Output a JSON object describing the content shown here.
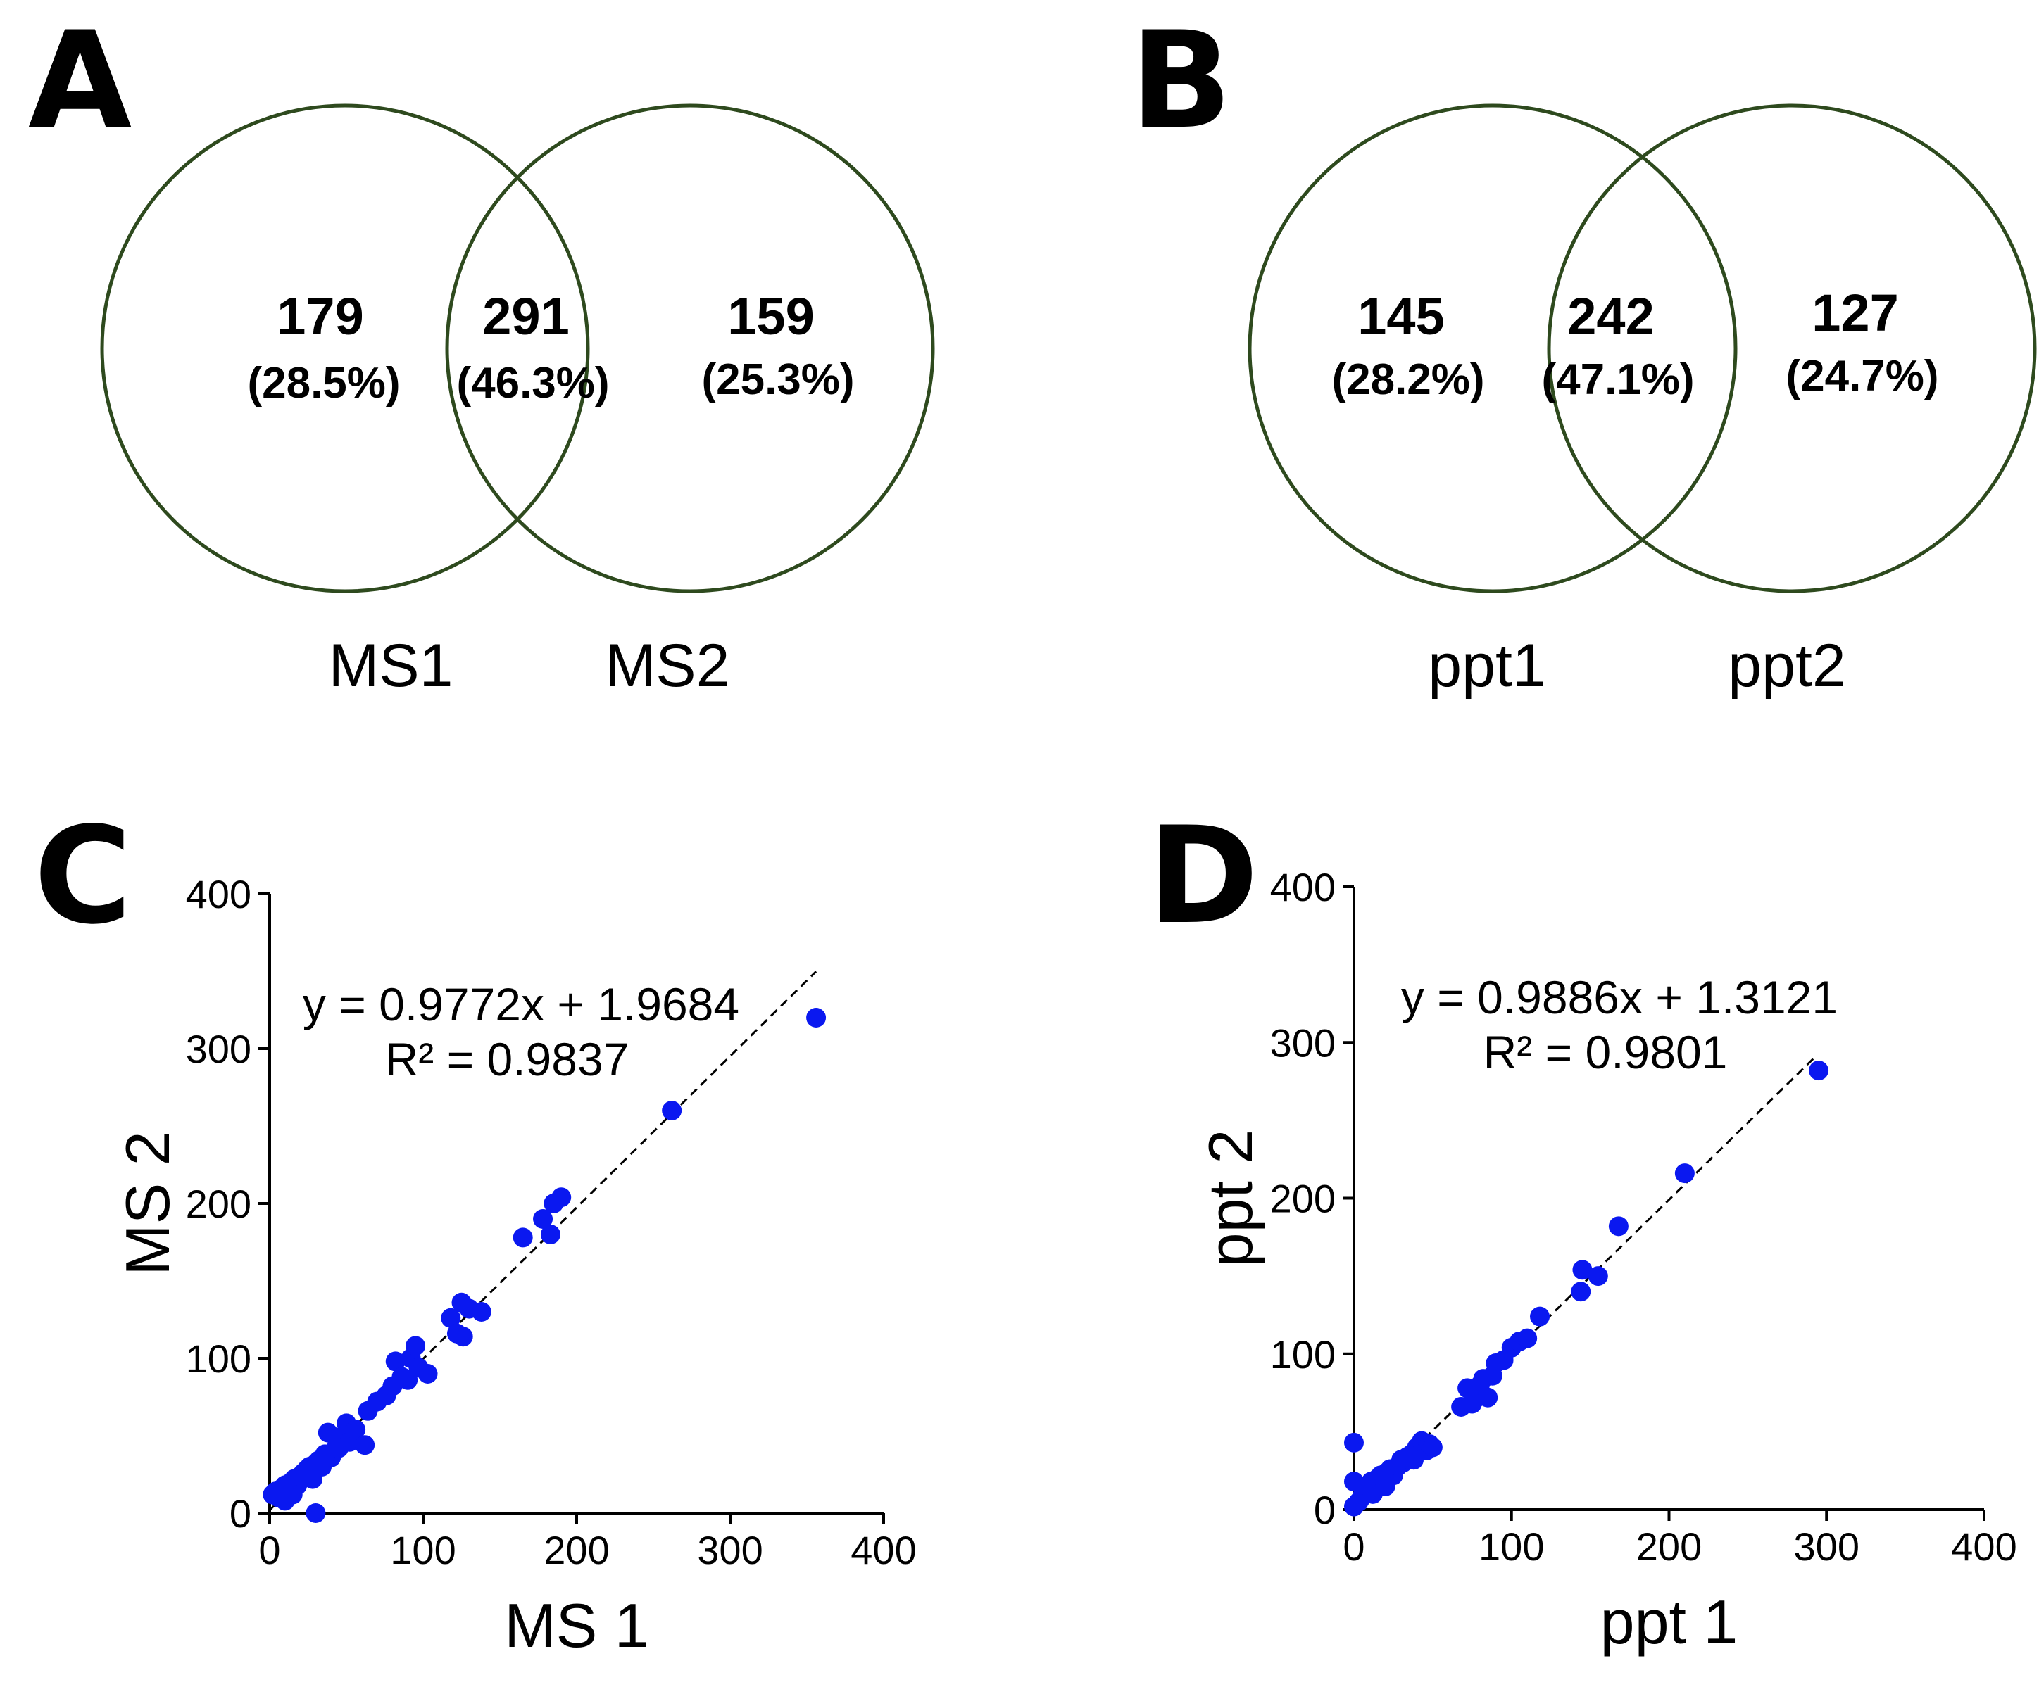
{
  "venn": [
    {
      "panel": "A",
      "left_label": "MS1",
      "right_label": "MS2",
      "left_count": "179",
      "left_pct": "(28.5%)",
      "overlap_count": "291",
      "overlap_pct": "(46.3%)",
      "right_count": "159",
      "right_pct": "(25.3%)"
    },
    {
      "panel": "B",
      "left_label": "ppt1",
      "right_label": "ppt2",
      "left_count": "145",
      "left_pct": "(28.2%)",
      "overlap_count": "242",
      "overlap_pct": "(47.1%)",
      "right_count": "127",
      "right_pct": "(24.7%)"
    }
  ],
  "chart_data": [
    {
      "panel": "C",
      "type": "scatter",
      "xlabel": "MS 1",
      "ylabel": "MS 2",
      "xlim": [
        0,
        400
      ],
      "ylim": [
        0,
        400
      ],
      "xticks": [
        "0",
        "100",
        "200",
        "300",
        "400"
      ],
      "yticks": [
        "0",
        "100",
        "200",
        "300",
        "400"
      ],
      "equation": "y = 0.9772x + 1.9684",
      "r2": "R² = 0.9837",
      "fit": {
        "slope": 0.9772,
        "intercept": 1.9684
      },
      "points": [
        [
          2,
          12
        ],
        [
          4,
          14
        ],
        [
          6,
          10
        ],
        [
          8,
          16
        ],
        [
          10,
          18
        ],
        [
          12,
          14
        ],
        [
          14,
          20
        ],
        [
          16,
          22
        ],
        [
          18,
          18
        ],
        [
          20,
          24
        ],
        [
          22,
          26
        ],
        [
          24,
          28
        ],
        [
          26,
          30
        ],
        [
          28,
          22
        ],
        [
          30,
          32
        ],
        [
          32,
          34
        ],
        [
          34,
          30
        ],
        [
          36,
          38
        ],
        [
          38,
          52
        ],
        [
          40,
          36
        ],
        [
          42,
          40
        ],
        [
          44,
          44
        ],
        [
          46,
          48
        ],
        [
          48,
          50
        ],
        [
          50,
          58
        ],
        [
          52,
          46
        ],
        [
          56,
          54
        ],
        [
          62,
          44
        ],
        [
          64,
          66
        ],
        [
          70,
          72
        ],
        [
          76,
          76
        ],
        [
          80,
          82
        ],
        [
          82,
          98
        ],
        [
          86,
          88
        ],
        [
          90,
          86
        ],
        [
          92,
          100
        ],
        [
          95,
          108
        ],
        [
          97,
          94
        ],
        [
          103,
          90
        ],
        [
          118,
          126
        ],
        [
          122,
          116
        ],
        [
          125,
          136
        ],
        [
          126,
          114
        ],
        [
          130,
          132
        ],
        [
          138,
          130
        ],
        [
          165,
          178
        ],
        [
          178,
          190
        ],
        [
          183,
          180
        ],
        [
          185,
          200
        ],
        [
          190,
          204
        ],
        [
          262,
          260
        ],
        [
          356,
          320
        ],
        [
          30,
          0
        ],
        [
          10,
          8
        ],
        [
          15,
          12
        ],
        [
          28,
          28
        ],
        [
          35,
          33
        ],
        [
          45,
          42
        ]
      ]
    },
    {
      "panel": "D",
      "type": "scatter",
      "xlabel": "ppt 1",
      "ylabel": "ppt 2",
      "xlim": [
        0,
        400
      ],
      "ylim": [
        0,
        400
      ],
      "xticks": [
        "0",
        "100",
        "200",
        "300",
        "400"
      ],
      "yticks": [
        "0",
        "100",
        "200",
        "300",
        "400"
      ],
      "equation": "y = 0.9886x + 1.3121",
      "r2": "R² = 0.9801",
      "fit": {
        "slope": 0.9886,
        "intercept": 1.3121
      },
      "points": [
        [
          0,
          43
        ],
        [
          0,
          18
        ],
        [
          0,
          2
        ],
        [
          3,
          5
        ],
        [
          5,
          8
        ],
        [
          7,
          12
        ],
        [
          9,
          15
        ],
        [
          11,
          18
        ],
        [
          13,
          16
        ],
        [
          15,
          20
        ],
        [
          17,
          22
        ],
        [
          19,
          18
        ],
        [
          21,
          24
        ],
        [
          23,
          26
        ],
        [
          25,
          22
        ],
        [
          28,
          28
        ],
        [
          31,
          30
        ],
        [
          34,
          34
        ],
        [
          37,
          36
        ],
        [
          40,
          40
        ],
        [
          43,
          44
        ],
        [
          46,
          38
        ],
        [
          48,
          42
        ],
        [
          50,
          40
        ],
        [
          68,
          66
        ],
        [
          72,
          78
        ],
        [
          75,
          68
        ],
        [
          78,
          72
        ],
        [
          80,
          80
        ],
        [
          82,
          84
        ],
        [
          85,
          72
        ],
        [
          88,
          86
        ],
        [
          90,
          94
        ],
        [
          95,
          96
        ],
        [
          100,
          104
        ],
        [
          105,
          108
        ],
        [
          110,
          110
        ],
        [
          118,
          124
        ],
        [
          144,
          140
        ],
        [
          145,
          154
        ],
        [
          155,
          150
        ],
        [
          168,
          182
        ],
        [
          210,
          216
        ],
        [
          295,
          282
        ],
        [
          12,
          10
        ],
        [
          20,
          15
        ],
        [
          30,
          32
        ],
        [
          38,
          32
        ]
      ]
    }
  ]
}
